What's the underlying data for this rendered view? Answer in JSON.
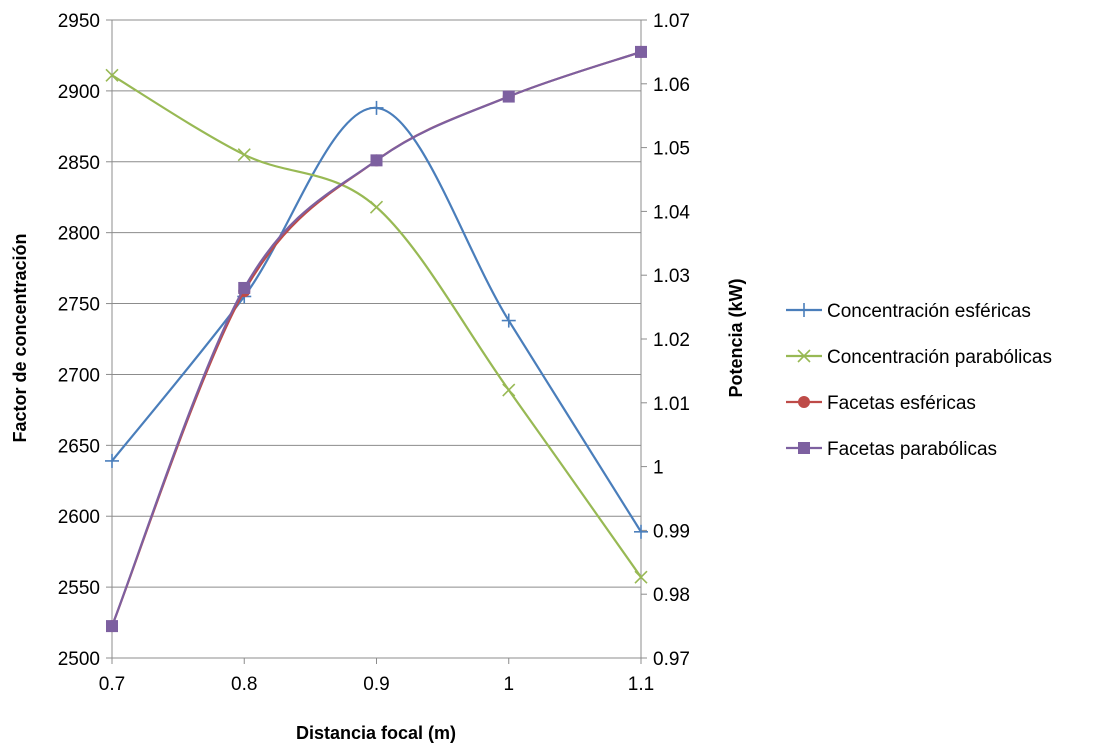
{
  "chart_data": {
    "type": "line",
    "title": "",
    "xlabel": "Distancia focal (m)",
    "ylabel_left": "Factor de concentración",
    "ylabel_right": "Potencia (kW)",
    "x": [
      0.7,
      0.8,
      0.9,
      1.0,
      1.1
    ],
    "x_tick_labels": [
      "0.7",
      "0.8",
      "0.9",
      "1",
      "1.1"
    ],
    "xlim": [
      0.7,
      1.1
    ],
    "ylim_left": [
      2500,
      2950
    ],
    "ylim_right": [
      0.97,
      1.07
    ],
    "y_left_ticks": [
      "2500",
      "2550",
      "2600",
      "2650",
      "2700",
      "2750",
      "2800",
      "2850",
      "2900",
      "2950"
    ],
    "y_right_ticks": [
      "0.97",
      "0.98",
      "0.99",
      "1",
      "1.01",
      "1.02",
      "1.03",
      "1.04",
      "1.05",
      "1.06",
      "1.07"
    ],
    "grid": "horizontal",
    "smooth": true,
    "legend_position": "right",
    "series": [
      {
        "name": "Concentración esféricas",
        "axis": "left",
        "marker": "plus",
        "color": "#4a7ebb",
        "values": [
          2639,
          2755,
          2888,
          2738,
          2589
        ]
      },
      {
        "name": "Concentración parabólicas",
        "axis": "left",
        "marker": "x",
        "color": "#98b954",
        "values": [
          2911,
          2855,
          2818,
          2689,
          2557
        ]
      },
      {
        "name": "Facetas esféricas",
        "axis": "right",
        "marker": "circle",
        "color": "#be4b48",
        "values": [
          0.975,
          1.0275,
          1.048,
          1.058,
          1.065
        ]
      },
      {
        "name": "Facetas parabólicas",
        "axis": "right",
        "marker": "square",
        "color": "#7d60a0",
        "values": [
          0.975,
          1.028,
          1.048,
          1.058,
          1.065
        ]
      }
    ]
  }
}
